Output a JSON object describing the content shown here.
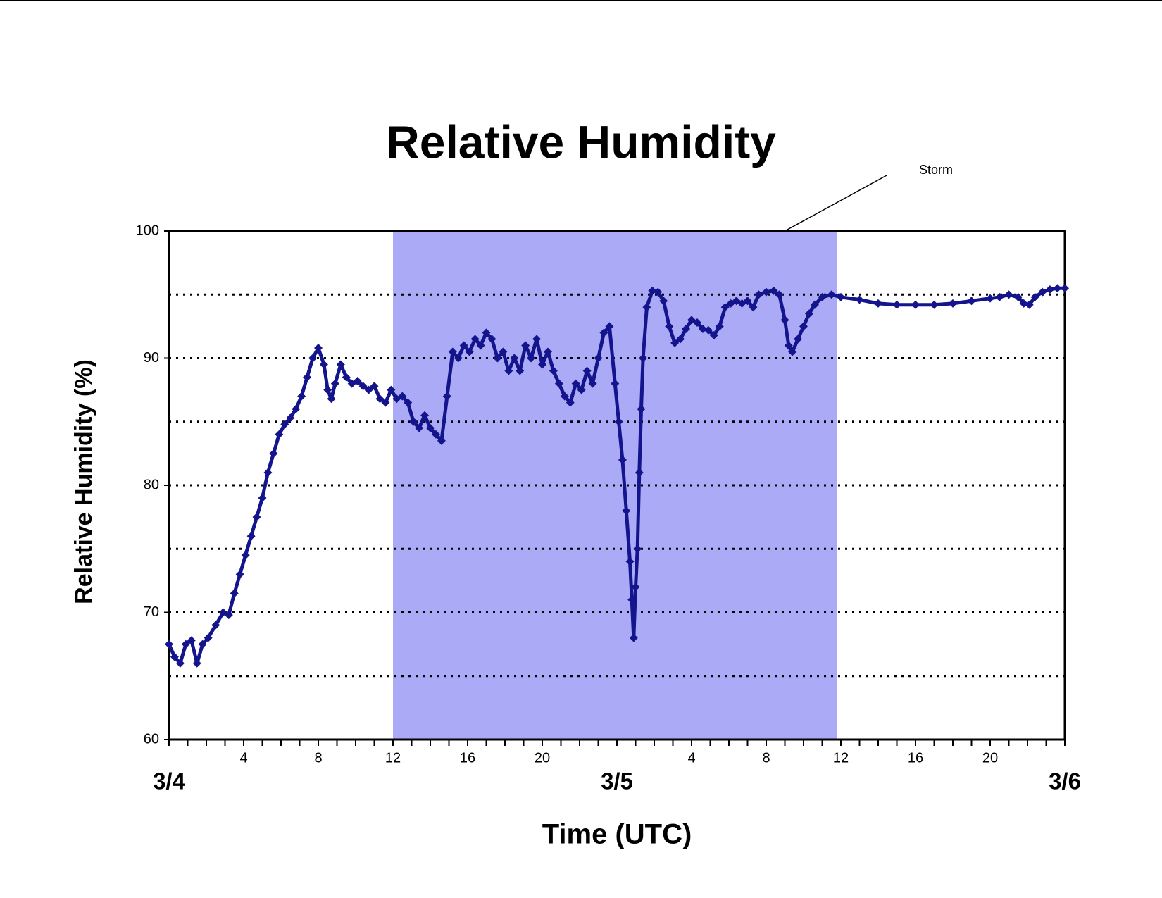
{
  "chart_data": {
    "type": "scatter",
    "title": "Relative Humidity",
    "xlabel": "Time (UTC)",
    "ylabel": "Relative Humidity (%)",
    "annotation": {
      "text": "Storm",
      "x0": 12,
      "x1": 35.8,
      "pointer_x": 33
    },
    "shade_color": "#aaaaf7",
    "xlim": [
      0,
      48
    ],
    "xticks": [
      4,
      8,
      12,
      16,
      20,
      {
        "value": 28,
        "label": "4"
      },
      {
        "value": 32,
        "label": "8"
      },
      {
        "value": 36,
        "label": "12"
      },
      {
        "value": 40,
        "label": "16"
      },
      {
        "value": 44,
        "label": "20"
      }
    ],
    "date_ticks": [
      {
        "value": 0,
        "label": "3/4"
      },
      {
        "value": 24,
        "label": "3/5"
      },
      {
        "value": 48,
        "label": "3/6"
      }
    ],
    "xminorticks": [
      0,
      1,
      2,
      3,
      4,
      5,
      6,
      7,
      8,
      9,
      10,
      11,
      12,
      13,
      14,
      15,
      16,
      17,
      18,
      19,
      20,
      21,
      22,
      23,
      24,
      25,
      26,
      27,
      28,
      29,
      30,
      31,
      32,
      33,
      34,
      35,
      36,
      37,
      38,
      39,
      40,
      41,
      42,
      43,
      44,
      45,
      46,
      47,
      48
    ],
    "ylim": [
      60,
      100
    ],
    "yticks": [
      60,
      70,
      80,
      90,
      100
    ],
    "ygrid": [
      65,
      70,
      75,
      80,
      85,
      90,
      95
    ],
    "series": [
      {
        "name": "Relative Humidity",
        "color": "#14148c",
        "x": [
          0,
          0.3,
          0.6,
          0.9,
          1.2,
          1.5,
          1.8,
          2.1,
          2.5,
          2.9,
          3.2,
          3.5,
          3.8,
          4.1,
          4.4,
          4.7,
          5.0,
          5.3,
          5.6,
          5.9,
          6.2,
          6.5,
          6.8,
          7.1,
          7.4,
          7.7,
          8.0,
          8.3,
          8.5,
          8.7,
          8.9,
          9.2,
          9.5,
          9.8,
          10.1,
          10.4,
          10.7,
          11,
          11.3,
          11.6,
          11.9,
          12.2,
          12.5,
          12.8,
          13.1,
          13.4,
          13.7,
          14,
          14.3,
          14.6,
          14.9,
          15.2,
          15.5,
          15.8,
          16.1,
          16.4,
          16.7,
          17,
          17.3,
          17.6,
          17.9,
          18.2,
          18.5,
          18.8,
          19.1,
          19.4,
          19.7,
          20,
          20.3,
          20.6,
          20.9,
          21.2,
          21.5,
          21.8,
          22.1,
          22.4,
          22.7,
          23,
          23.3,
          23.6,
          23.9,
          24.1,
          24.3,
          24.5,
          24.7,
          24.8,
          24.9,
          25.0,
          25.1,
          25.2,
          25.3,
          25.4,
          25.6,
          25.9,
          26.2,
          26.5,
          26.8,
          27.1,
          27.4,
          27.7,
          28.0,
          28.3,
          28.6,
          28.9,
          29.2,
          29.5,
          29.8,
          30.1,
          30.4,
          30.7,
          31,
          31.3,
          31.6,
          32,
          32.4,
          32.7,
          33.0,
          33.2,
          33.4,
          33.7,
          34,
          34.3,
          34.6,
          35,
          35.5,
          36,
          37,
          38,
          39,
          40,
          41,
          42,
          43,
          44,
          44.5,
          45,
          45.5,
          45.8,
          46.1,
          46.4,
          46.8,
          47.2,
          47.6,
          48
        ],
        "values": [
          67.5,
          66.5,
          66,
          67.5,
          67.8,
          66,
          67.5,
          68,
          69,
          70,
          69.8,
          71.5,
          73,
          74.5,
          76,
          77.5,
          79,
          81,
          82.5,
          84,
          84.8,
          85.3,
          86,
          87,
          88.5,
          90,
          90.8,
          89.5,
          87.5,
          86.8,
          88,
          89.5,
          88.5,
          88,
          88.2,
          87.8,
          87.5,
          87.8,
          86.8,
          86.5,
          87.5,
          86.8,
          87,
          86.5,
          85,
          84.5,
          85.5,
          84.5,
          84,
          83.5,
          87,
          90.5,
          90,
          91,
          90.5,
          91.5,
          91,
          92,
          91.5,
          90,
          90.5,
          89,
          90,
          89,
          91,
          90,
          91.5,
          89.5,
          90.5,
          89,
          88,
          87,
          86.5,
          88,
          87.5,
          89,
          88,
          90,
          92,
          92.5,
          88,
          85,
          82,
          78,
          74,
          71,
          68,
          72,
          75,
          81,
          86,
          90,
          94,
          95.3,
          95.2,
          94.5,
          92.5,
          91.2,
          91.5,
          92.3,
          93,
          92.8,
          92.3,
          92.2,
          91.8,
          92.5,
          94,
          94.3,
          94.5,
          94.3,
          94.5,
          94,
          95,
          95.2,
          95.3,
          95,
          93,
          91,
          90.5,
          91.5,
          92.5,
          93.5,
          94.2,
          94.8,
          95,
          94.8,
          94.6,
          94.3,
          94.2,
          94.2,
          94.2,
          94.3,
          94.5,
          94.7,
          94.8,
          95,
          94.8,
          94.3,
          94.2,
          94.8,
          95.2,
          95.4,
          95.5,
          95.5
        ]
      }
    ]
  }
}
